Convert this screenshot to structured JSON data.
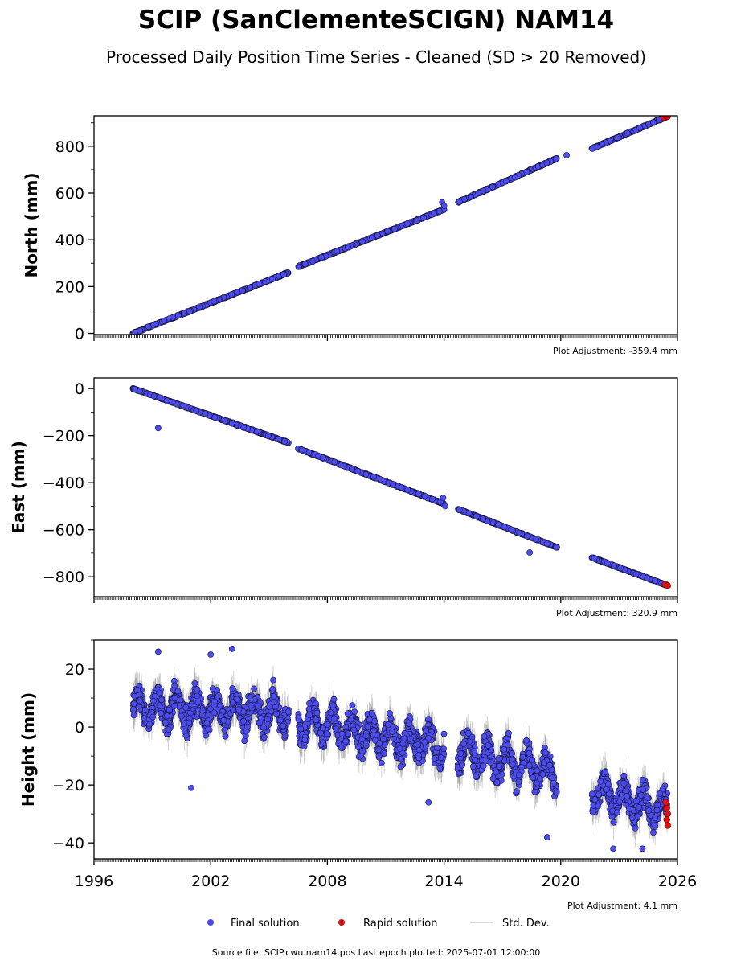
{
  "title": "SCIP (SanClementeSCIGN) NAM14",
  "subtitle": "Processed Daily Position Time Series - Cleaned (SD > 20 Removed)",
  "legend": {
    "final": "Final solution",
    "rapid": "Rapid solution",
    "std": "Std. Dev."
  },
  "source_note": "Source file: SCIP.cwu.nam14.pos  Last epoch plotted: 2025-07-01 12:00:00",
  "colors": {
    "final": "#4b4bf0",
    "rapid": "#e01010",
    "std": "#9a9a9a",
    "edge": "#1a1a3a"
  },
  "chart_data": [
    {
      "type": "scatter",
      "ylabel": "North (mm)",
      "adjustment": "Plot Adjustment: -359.4 mm",
      "xlim": [
        1996,
        2026
      ],
      "ylim": [
        -5,
        930
      ],
      "yticks": [
        0,
        200,
        400,
        600,
        800
      ],
      "ytick_labels": [
        "0",
        "200",
        "400",
        "600",
        "800"
      ],
      "segments": [
        {
          "x": [
            1998.0,
            2006.0
          ],
          "y": [
            0,
            260
          ]
        },
        {
          "x": [
            2006.5,
            2014.0
          ],
          "y": [
            285,
            530
          ]
        },
        {
          "x": [
            2014.7,
            2019.8
          ],
          "y": [
            560,
            748
          ]
        },
        {
          "x": [
            2021.6,
            2025.5
          ],
          "y": [
            790,
            928
          ]
        }
      ],
      "outliers": [
        {
          "x": 2013.9,
          "y": 560
        },
        {
          "x": 2014.0,
          "y": 545
        },
        {
          "x": 2020.3,
          "y": 762
        }
      ],
      "rapid": [
        {
          "x": 2025.3,
          "y": 922
        },
        {
          "x": 2025.45,
          "y": 927
        },
        {
          "x": 2025.5,
          "y": 928
        }
      ]
    },
    {
      "type": "scatter",
      "ylabel": "East (mm)",
      "adjustment": "Plot Adjustment: 320.9 mm",
      "xlim": [
        1996,
        2026
      ],
      "ylim": [
        -885,
        45
      ],
      "yticks": [
        0,
        -200,
        -400,
        -600,
        -800
      ],
      "ytick_labels": [
        "0",
        "−200",
        "−400",
        "−600",
        "−800"
      ],
      "segments": [
        {
          "x": [
            1998.0,
            2006.0
          ],
          "y": [
            0,
            -230
          ]
        },
        {
          "x": [
            2006.5,
            2014.0
          ],
          "y": [
            -255,
            -490
          ]
        },
        {
          "x": [
            2014.7,
            2019.8
          ],
          "y": [
            -512,
            -675
          ]
        },
        {
          "x": [
            2021.6,
            2025.5
          ],
          "y": [
            -718,
            -838
          ]
        }
      ],
      "outliers": [
        {
          "x": 1999.3,
          "y": -168
        },
        {
          "x": 2018.4,
          "y": -697
        },
        {
          "x": 2013.95,
          "y": -465
        },
        {
          "x": 2014.05,
          "y": -500
        }
      ],
      "rapid": [
        {
          "x": 2025.35,
          "y": -833
        },
        {
          "x": 2025.5,
          "y": -838
        }
      ]
    },
    {
      "type": "scatter",
      "ylabel": "Height (mm)",
      "adjustment": "Plot Adjustment: 4.1 mm",
      "xlim": [
        1996,
        2026
      ],
      "ylim": [
        -45.5,
        30
      ],
      "yticks": [
        20,
        0,
        -20,
        -40
      ],
      "ytick_labels": [
        "20",
        "0",
        "−20",
        "−40"
      ],
      "xticks": [
        1996,
        2002,
        2008,
        2014,
        2020,
        2026
      ],
      "xtick_labels": [
        "1996",
        "2002",
        "2008",
        "2014",
        "2020",
        "2026"
      ],
      "segments": [
        {
          "x": [
            1998.0,
            2006.0
          ],
          "y": [
            7,
            5
          ]
        },
        {
          "x": [
            2006.5,
            2014.0
          ],
          "y": [
            2,
            -7
          ]
        },
        {
          "x": [
            2014.7,
            2019.8
          ],
          "y": [
            -8,
            -16
          ]
        },
        {
          "x": [
            2021.6,
            2025.5
          ],
          "y": [
            -22,
            -29
          ]
        }
      ],
      "outliers": [
        {
          "x": 1999.3,
          "y": 26
        },
        {
          "x": 2002.0,
          "y": 25
        },
        {
          "x": 2003.1,
          "y": 27
        },
        {
          "x": 2001.0,
          "y": -21
        },
        {
          "x": 2013.2,
          "y": -26
        },
        {
          "x": 2019.3,
          "y": -38
        },
        {
          "x": 2024.2,
          "y": -42
        },
        {
          "x": 2022.7,
          "y": -42
        }
      ],
      "rapid": [
        {
          "x": 2025.4,
          "y": -26
        },
        {
          "x": 2025.45,
          "y": -28
        },
        {
          "x": 2025.5,
          "y": -30
        },
        {
          "x": 2025.45,
          "y": -32
        },
        {
          "x": 2025.5,
          "y": -34
        }
      ]
    }
  ]
}
